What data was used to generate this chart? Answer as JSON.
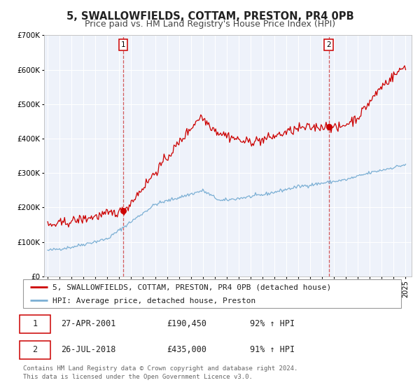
{
  "title": "5, SWALLOWFIELDS, COTTAM, PRESTON, PR4 0PB",
  "subtitle": "Price paid vs. HM Land Registry's House Price Index (HPI)",
  "ylim": [
    0,
    700000
  ],
  "xlim_start": 1994.7,
  "xlim_end": 2025.5,
  "yticks": [
    0,
    100000,
    200000,
    300000,
    400000,
    500000,
    600000,
    700000
  ],
  "ytick_labels": [
    "£0",
    "£100K",
    "£200K",
    "£300K",
    "£400K",
    "£500K",
    "£600K",
    "£700K"
  ],
  "xticks": [
    1995,
    1996,
    1997,
    1998,
    1999,
    2000,
    2001,
    2002,
    2003,
    2004,
    2005,
    2006,
    2007,
    2008,
    2009,
    2010,
    2011,
    2012,
    2013,
    2014,
    2015,
    2016,
    2017,
    2018,
    2019,
    2020,
    2021,
    2022,
    2023,
    2024,
    2025
  ],
  "house_color": "#cc0000",
  "hpi_color": "#7bafd4",
  "background_color": "#eef2fa",
  "grid_color": "#ffffff",
  "sale1_date": 2001.32,
  "sale1_price": 190450,
  "sale1_label": "1",
  "sale2_date": 2018.55,
  "sale2_price": 435000,
  "sale2_label": "2",
  "legend_house": "5, SWALLOWFIELDS, COTTAM, PRESTON, PR4 0PB (detached house)",
  "legend_hpi": "HPI: Average price, detached house, Preston",
  "table_row1": [
    "1",
    "27-APR-2001",
    "£190,450",
    "92% ↑ HPI"
  ],
  "table_row2": [
    "2",
    "26-JUL-2018",
    "£435,000",
    "91% ↑ HPI"
  ],
  "footer": "Contains HM Land Registry data © Crown copyright and database right 2024.\nThis data is licensed under the Open Government Licence v3.0.",
  "title_fontsize": 10.5,
  "subtitle_fontsize": 9,
  "tick_fontsize": 7.5,
  "legend_fontsize": 8,
  "table_fontsize": 8.5,
  "footer_fontsize": 6.5
}
